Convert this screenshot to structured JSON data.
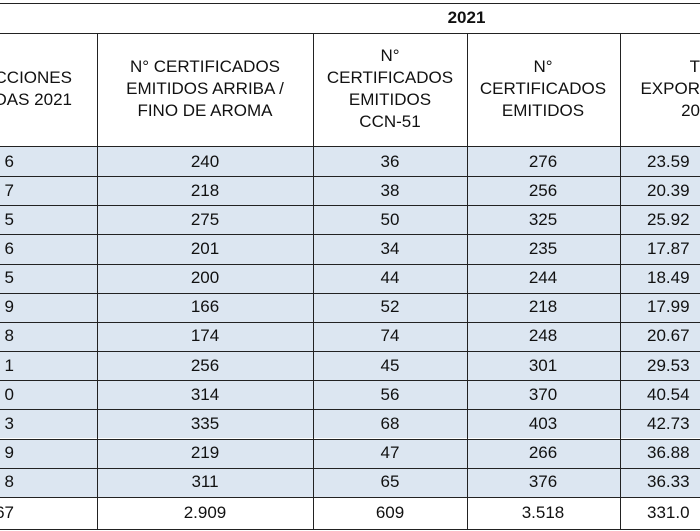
{
  "header": {
    "year": "2021",
    "columns": [
      [
        "CCIONES",
        "DAS 2021"
      ],
      [
        "N° CERTIFICADOS",
        "EMITIDOS ARRIBA /",
        "FINO DE AROMA"
      ],
      [
        "N°",
        "CERTIFICADOS",
        "EMITIDOS",
        "CCN-51"
      ],
      [
        "N°",
        "CERTIFICADOS",
        "EMITIDOS"
      ],
      [
        "T",
        "EXPOR",
        "20"
      ]
    ]
  },
  "table": {
    "rows": [
      [
        "6",
        "240",
        "36",
        "276",
        "23.59"
      ],
      [
        "7",
        "218",
        "38",
        "256",
        "20.39"
      ],
      [
        "5",
        "275",
        "50",
        "325",
        "25.92"
      ],
      [
        "6",
        "201",
        "34",
        "235",
        "17.87"
      ],
      [
        "5",
        "200",
        "44",
        "244",
        "18.49"
      ],
      [
        "9",
        "166",
        "52",
        "218",
        "17.99"
      ],
      [
        "8",
        "174",
        "74",
        "248",
        "20.67"
      ],
      [
        "1",
        "256",
        "45",
        "301",
        "29.53"
      ],
      [
        "0",
        "314",
        "56",
        "370",
        "40.54"
      ],
      [
        "3",
        "335",
        "68",
        "403",
        "42.73"
      ],
      [
        "9",
        "219",
        "47",
        "266",
        "36.88"
      ],
      [
        "8",
        "311",
        "65",
        "376",
        "36.33"
      ]
    ],
    "total": [
      "67",
      "2.909",
      "609",
      "3.518",
      "331.0"
    ]
  }
}
